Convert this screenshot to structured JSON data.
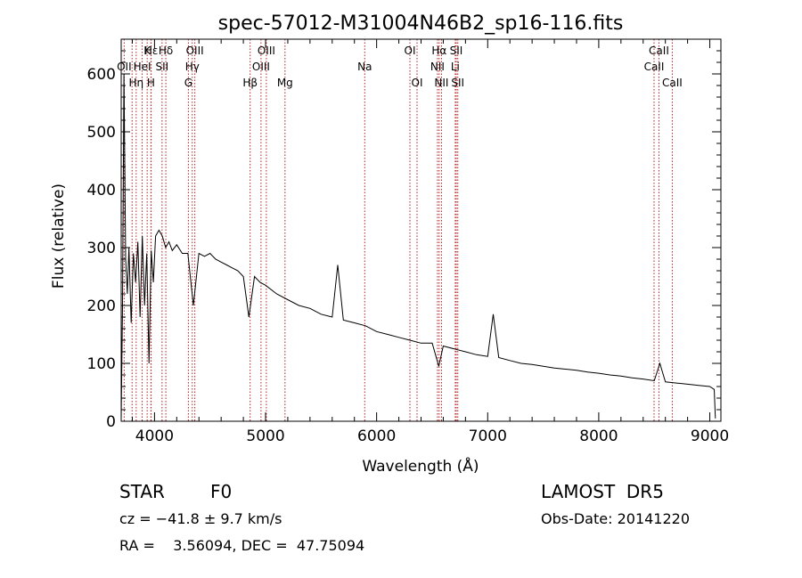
{
  "chart_data": {
    "type": "line",
    "title": "spec-57012-M31004N46B2_sp16-116.fits",
    "xlabel": "Wavelength (Å)",
    "ylabel": "Flux (relative)",
    "xlim": [
      3700,
      9100
    ],
    "ylim": [
      0,
      660
    ],
    "xticks": [
      4000,
      5000,
      6000,
      7000,
      8000,
      9000
    ],
    "yticks": [
      0,
      100,
      200,
      300,
      400,
      500,
      600
    ],
    "grid": false,
    "line_color": "#000000",
    "marker_color": "#b22222",
    "series": [
      {
        "x": [
          3700,
          3712,
          3725,
          3740,
          3755,
          3770,
          3790,
          3810,
          3830,
          3850,
          3870,
          3890,
          3910,
          3930,
          3950,
          3970,
          3990,
          4010,
          4040,
          4070,
          4100,
          4130,
          4160,
          4200,
          4250,
          4300,
          4350,
          4400,
          4450,
          4500,
          4550,
          4600,
          4650,
          4700,
          4750,
          4800,
          4850,
          4900,
          4950,
          5000,
          5100,
          5200,
          5300,
          5400,
          5500,
          5600,
          5650,
          5700,
          5800,
          5900,
          6000,
          6100,
          6200,
          6300,
          6400,
          6500,
          6560,
          6600,
          6700,
          6800,
          6900,
          7000,
          7050,
          7100,
          7200,
          7300,
          7400,
          7500,
          7600,
          7700,
          7800,
          7900,
          8000,
          8100,
          8200,
          8300,
          8400,
          8500,
          8550,
          8600,
          8700,
          8800,
          8900,
          9000,
          9040,
          9050
        ],
        "y": [
          5,
          200,
          600,
          280,
          220,
          300,
          170,
          290,
          240,
          310,
          180,
          320,
          200,
          290,
          100,
          295,
          240,
          320,
          330,
          320,
          300,
          310,
          295,
          305,
          290,
          290,
          200,
          290,
          285,
          290,
          280,
          275,
          270,
          265,
          260,
          250,
          180,
          250,
          240,
          235,
          220,
          210,
          200,
          195,
          185,
          180,
          270,
          175,
          170,
          165,
          155,
          150,
          145,
          140,
          135,
          135,
          95,
          130,
          125,
          120,
          115,
          112,
          185,
          110,
          105,
          100,
          98,
          95,
          92,
          90,
          88,
          85,
          83,
          80,
          78,
          75,
          73,
          70,
          100,
          68,
          66,
          64,
          62,
          60,
          55,
          5
        ]
      }
    ],
    "line_labels": [
      {
        "text": "Hε",
        "x": 3970,
        "row": 1
      },
      {
        "text": "K",
        "x": 3934,
        "row": 1
      },
      {
        "text": "Hδ",
        "x": 4102,
        "row": 1
      },
      {
        "text": "OIII",
        "x": 4363,
        "row": 1
      },
      {
        "text": "OII",
        "x": 3727,
        "row": 2
      },
      {
        "text": "HeI",
        "x": 3889,
        "row": 2
      },
      {
        "text": "SII",
        "x": 4068,
        "row": 2
      },
      {
        "text": "Hγ",
        "x": 4340,
        "row": 2
      },
      {
        "text": "OIII",
        "x": 5007,
        "row": 1
      },
      {
        "text": "OIII",
        "x": 4959,
        "row": 2
      },
      {
        "text": "Hη",
        "x": 3835,
        "row": 3
      },
      {
        "text": "H",
        "x": 3968,
        "row": 3
      },
      {
        "text": "G",
        "x": 4305,
        "row": 3
      },
      {
        "text": "Hβ",
        "x": 4861,
        "row": 3
      },
      {
        "text": "Mg",
        "x": 5175,
        "row": 3
      },
      {
        "text": "Na",
        "x": 5893,
        "row": 2
      },
      {
        "text": "OI",
        "x": 6300,
        "row": 1
      },
      {
        "text": "OI",
        "x": 6364,
        "row": 3
      },
      {
        "text": "Hα",
        "x": 6563,
        "row": 1
      },
      {
        "text": "SII",
        "x": 6717,
        "row": 1
      },
      {
        "text": "NII",
        "x": 6548,
        "row": 2
      },
      {
        "text": "Li",
        "x": 6708,
        "row": 2
      },
      {
        "text": "NII",
        "x": 6584,
        "row": 3
      },
      {
        "text": "SII",
        "x": 6731,
        "row": 3
      },
      {
        "text": "CaII",
        "x": 8542,
        "row": 1
      },
      {
        "text": "CaII",
        "x": 8498,
        "row": 2
      },
      {
        "text": "CaII",
        "x": 8662,
        "row": 3
      }
    ],
    "marker_lines_x": [
      3727,
      3798,
      3835,
      3889,
      3934,
      3968,
      3970,
      4068,
      4102,
      4305,
      4340,
      4363,
      4861,
      4959,
      5007,
      5175,
      5893,
      6300,
      6364,
      6548,
      6563,
      6584,
      6708,
      6717,
      6731,
      8498,
      8542,
      8662
    ]
  },
  "footer": {
    "class_label": "STAR",
    "subclass_label": "F0",
    "survey": "LAMOST  DR5",
    "cz": "cz = −41.8 ± 9.7 km/s",
    "obs_date": "Obs-Date: 20141220",
    "coords": "RA =    3.56094, DEC =  47.75094"
  }
}
